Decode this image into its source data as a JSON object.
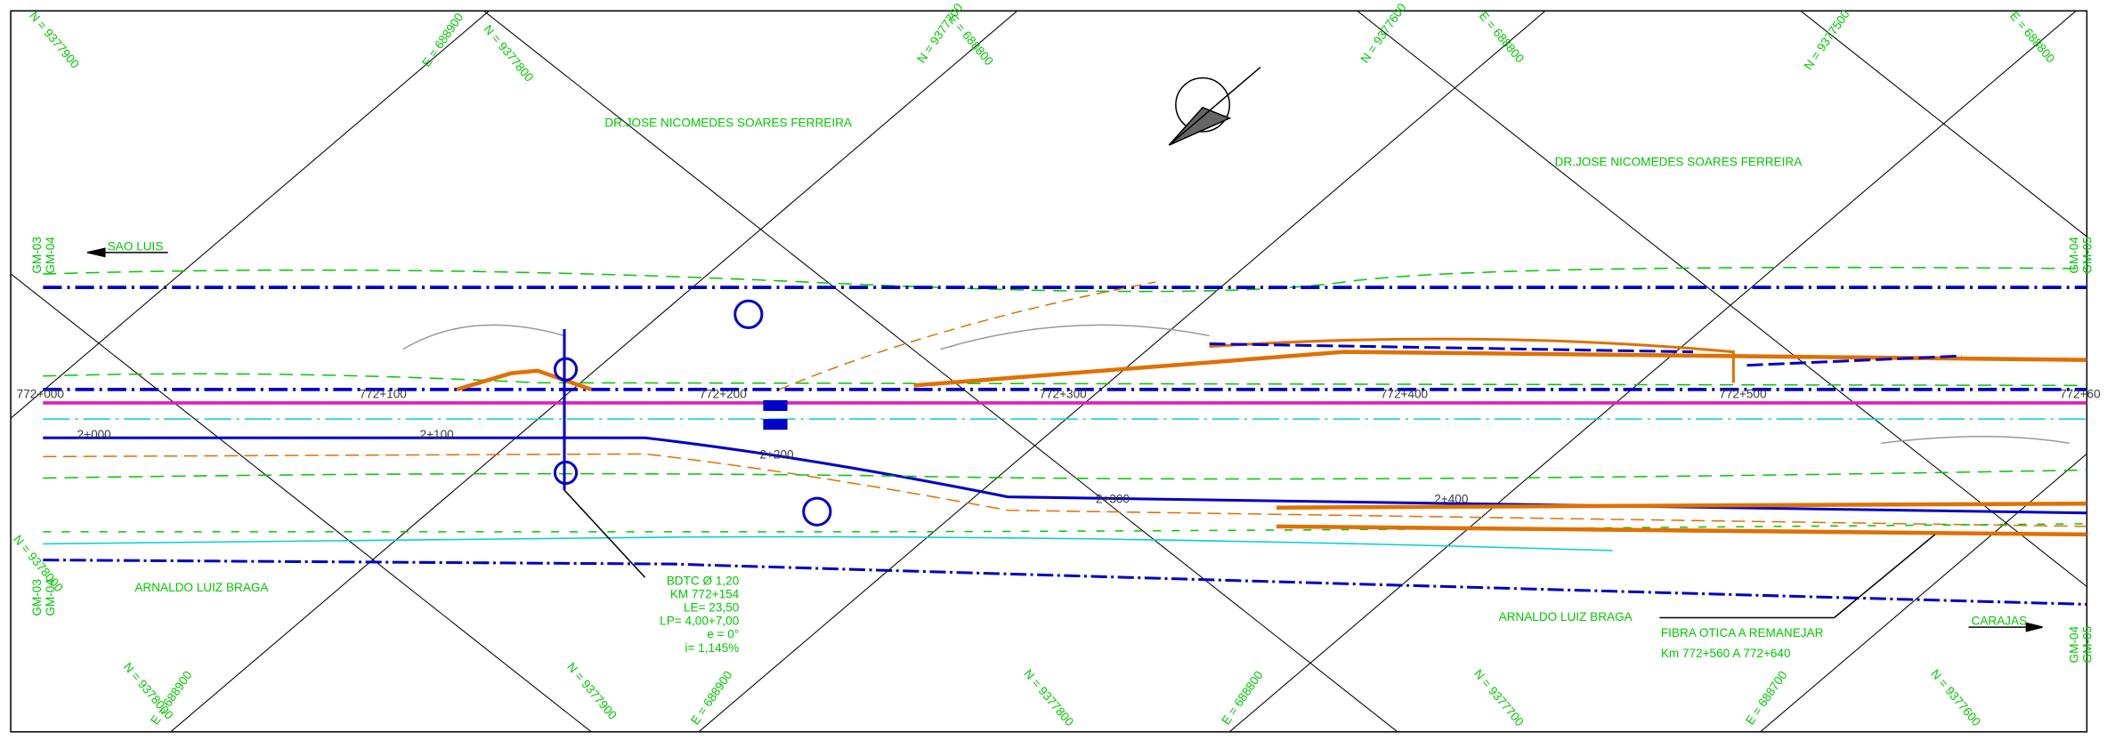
{
  "header": {
    "sheet_left": [
      "GM-03",
      "GM-04"
    ],
    "sheet_right": [
      "GM-04",
      "GM-05"
    ]
  },
  "owners": {
    "top": "DR.JOSE NICOMEDES SOARES FERREIRA",
    "bottom": "ARNALDO LUIZ BRAGA"
  },
  "directions": {
    "left": "SAO LUIS",
    "right": "CARAJAS"
  },
  "stations_main": [
    "772+000",
    "772+100",
    "772+200",
    "772+300",
    "772+400",
    "772+500",
    "772+60"
  ],
  "stations_branch": [
    "2+000",
    "2+100",
    "2+200",
    "2+300",
    "2+400"
  ],
  "culvert_note": [
    "BDTC Ø 1,20",
    "KM 772+154",
    "LE= 23,50",
    "LP= 4,00+7,00",
    "e = 0°",
    "i= 1,145%"
  ],
  "fiber_note": [
    "FIBRA OTICA A REMANEJAR",
    "Km 772+560 A 772+640"
  ],
  "grid_labels_top": [
    "N = 9377900",
    "E = 688900",
    "N = 9377800",
    "N = 9377700",
    "E = 688800",
    "N = 9377600",
    "E = 688800",
    "N = 9377500",
    "E = 688800"
  ],
  "grid_labels_bottom": [
    "N = 9378000",
    "N = 9378000",
    "E = 688900",
    "N = 9377900",
    "E = 688900",
    "N = 9377800",
    "E = 688800",
    "N = 9377700",
    "E = 688700",
    "N = 9377600"
  ]
}
